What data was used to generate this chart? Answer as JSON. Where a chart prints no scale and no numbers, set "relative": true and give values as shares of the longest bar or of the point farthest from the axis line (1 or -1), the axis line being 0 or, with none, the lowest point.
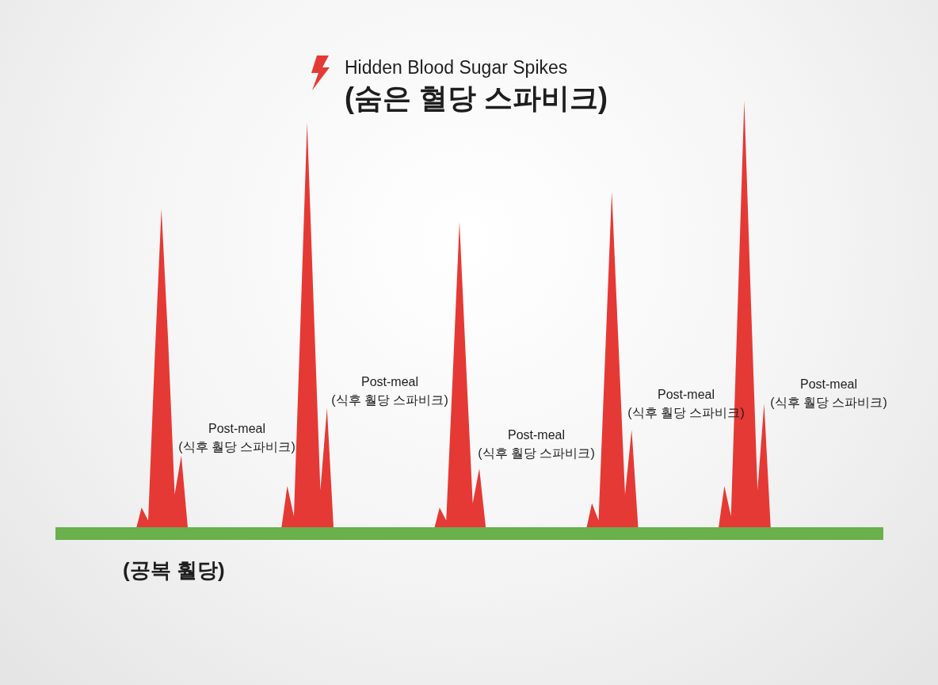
{
  "chart_data": {
    "type": "area",
    "title": "Hidden Blood Sugar Spikes",
    "subtitle": "(숨은 혈당 스파비크)",
    "categories": [
      null,
      null,
      null,
      null,
      null,
      null,
      null,
      null,
      null,
      null,
      null,
      null,
      null,
      null,
      null,
      null,
      null,
      null,
      null,
      null,
      null,
      null,
      null,
      null,
      null,
      null,
      null,
      null,
      null,
      null,
      null,
      null,
      null,
      null,
      null,
      null,
      null,
      null,
      null,
      null,
      null,
      null,
      null,
      null,
      null,
      null,
      null,
      null,
      null,
      null,
      null,
      null,
      null,
      null,
      null,
      null,
      null,
      null,
      null,
      null,
      null,
      null,
      null,
      null,
      null,
      null,
      null,
      null,
      null,
      null,
      null,
      null,
      null,
      null,
      null,
      null,
      null,
      null,
      null,
      null,
      null,
      null,
      null,
      null,
      null,
      null,
      null,
      null,
      null,
      null,
      null,
      null,
      null,
      null,
      null,
      null,
      null,
      null,
      null,
      null,
      null,
      null,
      null,
      null,
      null,
      null,
      null,
      null,
      null,
      null,
      null,
      null,
      null,
      null,
      null,
      null,
      null,
      null,
      null,
      null,
      null,
      null,
      null,
      null,
      null,
      null
    ],
    "values": [
      0,
      0,
      0,
      0,
      0,
      0,
      0,
      0,
      0,
      0,
      0,
      0,
      0,
      0.06,
      0.03,
      0.41,
      0.75,
      0.45,
      0.09,
      0.18,
      0.01,
      0,
      0,
      0,
      0,
      0,
      0,
      0,
      0,
      0,
      0,
      0,
      0,
      0,
      0,
      0.11,
      0.04,
      0.49,
      0.95,
      0.52,
      0.1,
      0.29,
      0.01,
      0,
      0,
      0,
      0,
      0,
      0,
      0,
      0,
      0,
      0,
      0,
      0,
      0,
      0,
      0,
      0.06,
      0.03,
      0.37,
      0.72,
      0.39,
      0.07,
      0.15,
      0.01,
      0,
      0,
      0,
      0,
      0,
      0,
      0,
      0,
      0,
      0,
      0,
      0,
      0,
      0,
      0,
      0.07,
      0.03,
      0.41,
      0.79,
      0.44,
      0.09,
      0.24,
      0.01,
      0,
      0,
      0,
      0,
      0,
      0,
      0,
      0,
      0,
      0,
      0,
      0,
      0.11,
      0.04,
      0.52,
      1,
      0.54,
      0.1,
      0.3,
      0.01,
      0,
      0,
      0,
      0,
      0,
      0,
      0,
      0,
      0,
      0,
      0,
      0,
      0,
      0,
      0,
      0,
      0
    ],
    "color": "#e53935",
    "relative": true,
    "ref_lines": [
      {
        "axis": "y",
        "value": 0,
        "label": "(공복 훨당)",
        "color": "#6ab04c"
      }
    ],
    "annotations": [
      "Post-meal\n(식후 훨당 스파비크)",
      "Post-meal\n(식후 훨당 스파비크)",
      "Post-meal\n(식후 훨당 스파비크)",
      "Post-meal\n(식후 훨당 스파비크)",
      "Post-meal\n(식후 훨당 스파비크)"
    ]
  }
}
